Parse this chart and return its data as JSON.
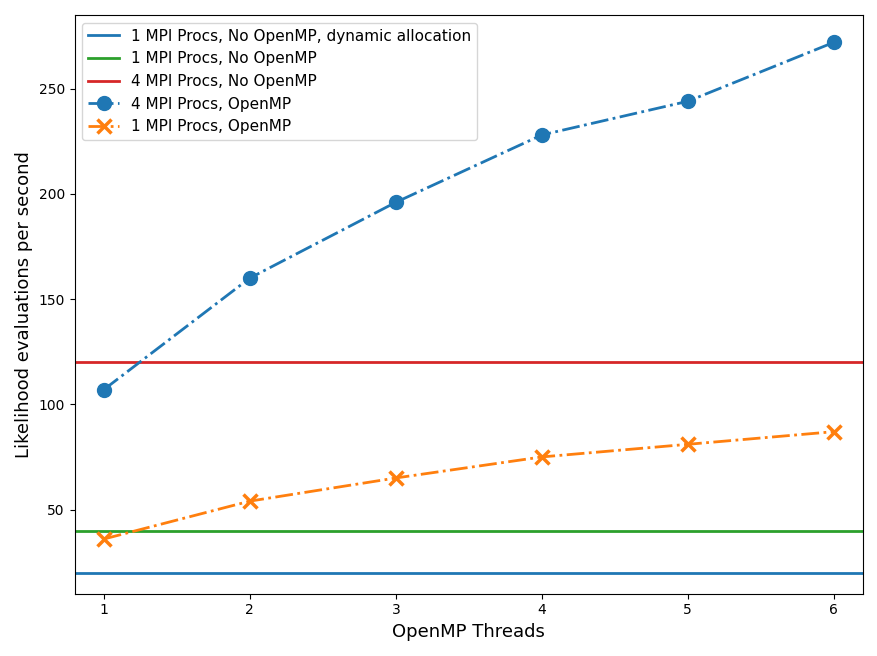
{
  "x": [
    1,
    2,
    3,
    4,
    5,
    6
  ],
  "blue_hline": 20,
  "green_hline": 40,
  "red_hline": 120,
  "blue_openmp_y": [
    107,
    160,
    196,
    228,
    244,
    272
  ],
  "orange_openmp_y": [
    36,
    54,
    65,
    75,
    81,
    87
  ],
  "blue_hline_label": "1 MPI Procs, No OpenMP, dynamic allocation",
  "green_hline_label": "1 MPI Procs, No OpenMP",
  "red_hline_label": "4 MPI Procs, No OpenMP",
  "blue_openmp_label": "4 MPI Procs, OpenMP",
  "orange_openmp_label": "1 MPI Procs, OpenMP",
  "xlabel": "OpenMP Threads",
  "ylabel": "Likelihood evaluations per second",
  "yticks": [
    50,
    100,
    150,
    200,
    250
  ],
  "ylim": [
    10,
    285
  ],
  "xlim": [
    0.8,
    6.2
  ],
  "blue_color": "#1f77b4",
  "green_color": "#2ca02c",
  "red_color": "#d62728",
  "orange_color": "#ff7f0e",
  "figsize": [
    8.78,
    6.56
  ],
  "dpi": 100
}
